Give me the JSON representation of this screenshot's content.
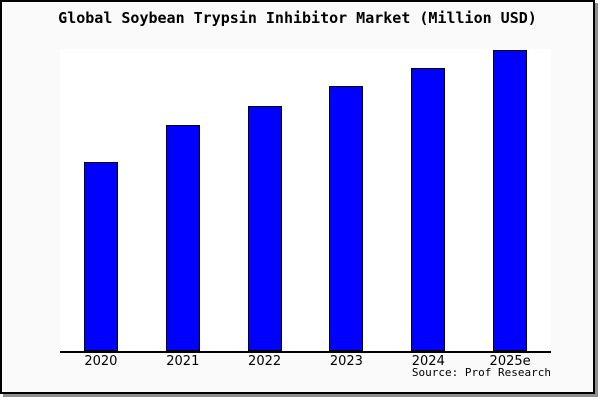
{
  "title": "Global Soybean Trypsin Inhibitor Market (Million USD)",
  "source": "Source: Prof Research",
  "colors": {
    "page_background": "#ffffff",
    "card_background": "#fafafa",
    "card_border": "#000000",
    "card_shadow": "#8f8f8f",
    "plot_background": "#ffffff",
    "axis": "#000000",
    "bar_fill": "#0000ff",
    "bar_border": "#000000",
    "text": "#000000"
  },
  "chart_data": {
    "type": "bar",
    "title": "Global Soybean Trypsin Inhibitor Market (Million USD)",
    "categories": [
      "2020",
      "2021",
      "2022",
      "2023",
      "2024",
      "2025e"
    ],
    "values": [
      62.8,
      75.1,
      81.4,
      88.0,
      94.0,
      100.0
    ],
    "xlabel": "",
    "ylabel": "",
    "ylim": [
      0,
      100
    ],
    "grid": false,
    "legend": false,
    "y_axis_labels_visible": false,
    "value_note": "no y-axis scale shown; values are relative bar heights with tallest bar (2025e) = 100",
    "source": "Source: Prof Research"
  }
}
